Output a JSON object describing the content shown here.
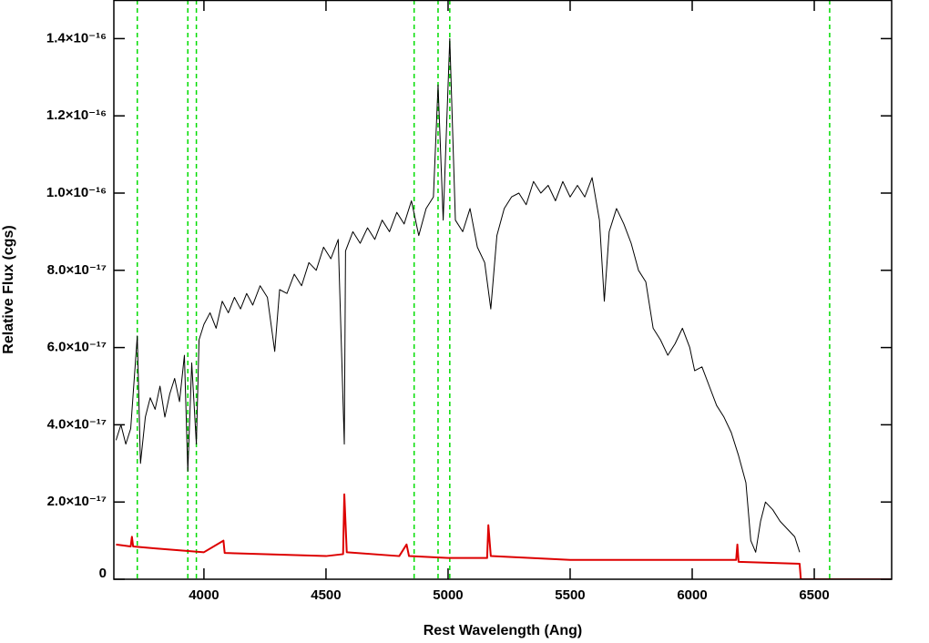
{
  "chart_data": {
    "type": "line",
    "x_label": "Rest Wavelength (Ang)",
    "y_label": "Relative Flux (cgs)",
    "xlim": [
      3631,
      6817
    ],
    "ylim": [
      0,
      1.5e-16
    ],
    "xticks": [
      4000,
      4500,
      5000,
      5500,
      6000,
      6500
    ],
    "yticks": [
      0,
      {
        "value": 2e-17,
        "label": "2.0×10⁻¹⁷"
      },
      {
        "value": 4e-17,
        "label": "4.0×10⁻¹⁷"
      },
      {
        "value": 6e-17,
        "label": "6.0×10⁻¹⁷"
      },
      {
        "value": 8e-17,
        "label": "8.0×10⁻¹⁷"
      },
      {
        "value": 1e-16,
        "label": "1.0×10⁻¹⁶"
      },
      {
        "value": 1.2e-16,
        "label": "1.2×10⁻¹⁶"
      },
      {
        "value": 1.4e-16,
        "label": "1.4×10⁻¹⁶"
      }
    ],
    "reference_lines": {
      "color": "#00dd00",
      "x": [
        3727,
        3934,
        3969,
        4861,
        4959,
        5007,
        6563
      ]
    },
    "series": [
      {
        "color": "#000000",
        "x": [
          3640,
          3660,
          3680,
          3700,
          3727,
          3740,
          3760,
          3780,
          3800,
          3820,
          3840,
          3860,
          3880,
          3900,
          3920,
          3934,
          3950,
          3969,
          3980,
          4000,
          4025,
          4050,
          4075,
          4100,
          4125,
          4150,
          4175,
          4200,
          4230,
          4260,
          4290,
          4310,
          4340,
          4370,
          4400,
          4430,
          4460,
          4490,
          4520,
          4550,
          4575,
          4580,
          4610,
          4640,
          4670,
          4700,
          4730,
          4760,
          4790,
          4820,
          4850,
          4880,
          4910,
          4940,
          4959,
          4980,
          5007,
          5030,
          5060,
          5090,
          5120,
          5150,
          5175,
          5200,
          5230,
          5260,
          5290,
          5320,
          5350,
          5380,
          5410,
          5440,
          5470,
          5500,
          5530,
          5560,
          5590,
          5620,
          5640,
          5660,
          5690,
          5720,
          5750,
          5780,
          5810,
          5840,
          5870,
          5900,
          5930,
          5960,
          5990,
          6010,
          6040,
          6070,
          6100,
          6130,
          6160,
          6190,
          6220,
          6240,
          6260,
          6280,
          6300,
          6330,
          6360,
          6390,
          6420,
          6440
        ],
        "values": [
          3.6e-17,
          4e-17,
          3.5e-17,
          3.9e-17,
          6.3e-17,
          3e-17,
          4.2e-17,
          4.7e-17,
          4.4e-17,
          5e-17,
          4.2e-17,
          4.8e-17,
          5.2e-17,
          4.6e-17,
          5.8e-17,
          2.8e-17,
          5.6e-17,
          3.5e-17,
          6.2e-17,
          6.6e-17,
          6.9e-17,
          6.5e-17,
          7.2e-17,
          6.9e-17,
          7.3e-17,
          7e-17,
          7.4e-17,
          7.1e-17,
          7.6e-17,
          7.3e-17,
          5.9e-17,
          7.5e-17,
          7.4e-17,
          7.9e-17,
          7.6e-17,
          8.2e-17,
          8e-17,
          8.6e-17,
          8.3e-17,
          8.8e-17,
          3.5e-17,
          8.5e-17,
          9e-17,
          8.7e-17,
          9.1e-17,
          8.8e-17,
          9.3e-17,
          9e-17,
          9.5e-17,
          9.2e-17,
          9.8e-17,
          8.9e-17,
          9.6e-17,
          9.9e-17,
          1.28e-16,
          9.3e-17,
          1.4e-16,
          9.3e-17,
          9e-17,
          9.6e-17,
          8.6e-17,
          8.2e-17,
          7e-17,
          8.9e-17,
          9.6e-17,
          9.9e-17,
          1e-16,
          9.7e-17,
          1.03e-16,
          1e-16,
          1.02e-16,
          9.8e-17,
          1.03e-16,
          9.9e-17,
          1.02e-16,
          9.9e-17,
          1.04e-16,
          9.3e-17,
          7.2e-17,
          9e-17,
          9.6e-17,
          9.2e-17,
          8.7e-17,
          8e-17,
          7.7e-17,
          6.5e-17,
          6.2e-17,
          5.8e-17,
          6.1e-17,
          6.5e-17,
          6e-17,
          5.4e-17,
          5.5e-17,
          5e-17,
          4.5e-17,
          4.2e-17,
          3.8e-17,
          3.2e-17,
          2.5e-17,
          1e-17,
          7e-18,
          1.5e-17,
          2e-17,
          1.8e-17,
          1.5e-17,
          1.3e-17,
          1.1e-17,
          7e-18
        ]
      },
      {
        "color": "#dd0000",
        "x": [
          3640,
          3700,
          3705,
          3710,
          3800,
          4000,
          4080,
          4085,
          4500,
          4570,
          4575,
          4585,
          4800,
          4830,
          4840,
          5000,
          5160,
          5165,
          5175,
          5500,
          5800,
          6180,
          6185,
          6190,
          6440,
          6445,
          6820
        ],
        "values": [
          9e-18,
          8.5e-18,
          1.1e-17,
          8.5e-18,
          8e-18,
          7e-18,
          1e-17,
          6.8e-18,
          6e-18,
          6.5e-18,
          2.2e-17,
          7e-18,
          6e-18,
          9e-18,
          6e-18,
          5.5e-18,
          5.5e-18,
          1.4e-17,
          6e-18,
          5e-18,
          5e-18,
          5e-18,
          9e-18,
          4.5e-18,
          4e-18,
          0,
          0
        ]
      }
    ]
  }
}
